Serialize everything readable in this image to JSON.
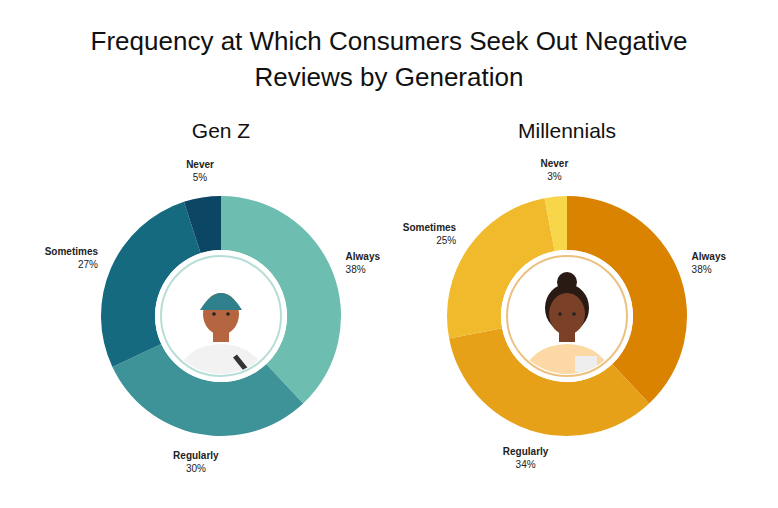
{
  "title": "Frequency at Which Consumers Seek Out Negative Reviews by Generation",
  "chart_data": [
    {
      "type": "donut",
      "title": "Gen Z",
      "categories": [
        "Always",
        "Regularly",
        "Sometimes",
        "Never"
      ],
      "values": [
        38,
        30,
        27,
        5
      ],
      "value_labels": [
        "38%",
        "30%",
        "27%",
        "5%"
      ],
      "colors": [
        "#6dbdb0",
        "#3e9399",
        "#166a80",
        "#0b4664"
      ],
      "data_labels": true
    },
    {
      "type": "donut",
      "title": "Millennials",
      "categories": [
        "Always",
        "Regularly",
        "Sometimes",
        "Never"
      ],
      "values": [
        38,
        34,
        25,
        3
      ],
      "value_labels": [
        "38%",
        "34%",
        "25%",
        "3%"
      ],
      "colors": [
        "#d98300",
        "#e6a119",
        "#f0ba2c",
        "#f7d64a"
      ],
      "data_labels": true
    }
  ]
}
